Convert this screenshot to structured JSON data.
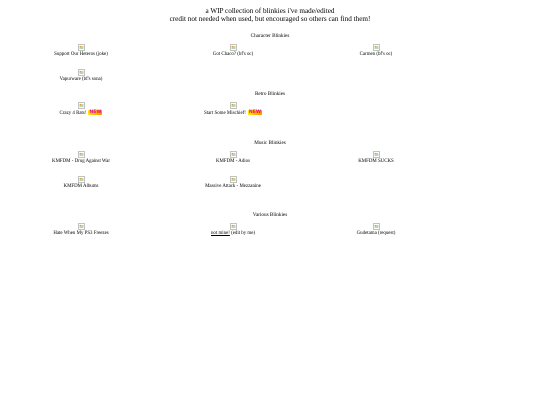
{
  "header": {
    "line1": "a WIP collection of blinkies i've made/edited",
    "line2": "credit not needed when used, but encouraged so others can find them!"
  },
  "sections": {
    "character": {
      "title": "Character Blinkies",
      "items": [
        {
          "label": "Support Our Heteros (joke)"
        },
        {
          "label": "Got Chaco? (bf's oc)"
        },
        {
          "label": "Carmen (bf's oc)"
        },
        {
          "label": "Vapurware (bf's sona)"
        }
      ]
    },
    "retro": {
      "title": "Retro Blinkies",
      "items": [
        {
          "label": "Crazy 4 Rats!",
          "badge": "NEW"
        },
        {
          "label": "Start Some Mischief!",
          "badge": "NEW"
        }
      ]
    },
    "music": {
      "title": "Music Blinkies",
      "items": [
        {
          "label": "KMFDM - Drug Against War"
        },
        {
          "label": "KMFDM - Adios"
        },
        {
          "label": "KMFDM SUCKS"
        },
        {
          "label": "KMFDM Albums"
        },
        {
          "label": "Massive Attack - Mezzanine"
        }
      ]
    },
    "various": {
      "title": "Various Blinkies",
      "items": [
        {
          "label": "Hate When My PS3 Freezes"
        },
        {
          "label": "not mine!",
          "suffix": " (edit by me)"
        },
        {
          "label": "Gudetama (request)"
        }
      ]
    }
  },
  "icons": {
    "broken_image": "broken-image-icon"
  }
}
